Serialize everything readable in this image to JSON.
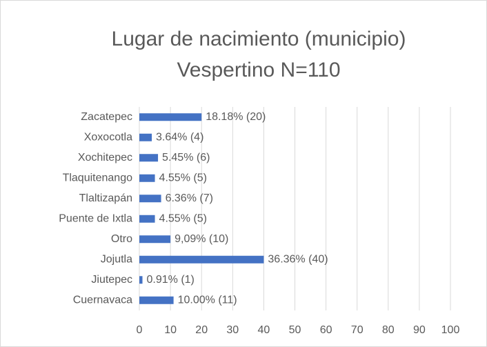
{
  "chart_data": {
    "type": "bar",
    "orientation": "horizontal",
    "title": "Lugar de nacimiento (municipio)",
    "subtitle": "Vespertino N=110",
    "categories": [
      "Zacatepec",
      "Xoxocotla",
      "Xochitepec",
      "Tlaquitenango",
      "Tlaltizapán",
      "Puente de Ixtla",
      "Otro",
      "Jojutla",
      "Jiutepec",
      "Cuernavaca"
    ],
    "values": [
      20,
      4,
      6,
      5,
      7,
      5,
      10,
      40,
      1,
      11
    ],
    "value_labels": [
      "18.18% (20)",
      "3.64% (4)",
      "5.45% (6)",
      "4.55% (5)",
      "6.36% (7)",
      "4.55% (5)",
      "9,09% (10)",
      "36.36% (40)",
      "0.91% (1)",
      "10.00% (11)"
    ],
    "color": "#4472c4",
    "xlim": [
      0,
      100
    ],
    "xticks": [
      0,
      10,
      20,
      30,
      40,
      50,
      60,
      70,
      80,
      90,
      100
    ],
    "grid": true
  }
}
